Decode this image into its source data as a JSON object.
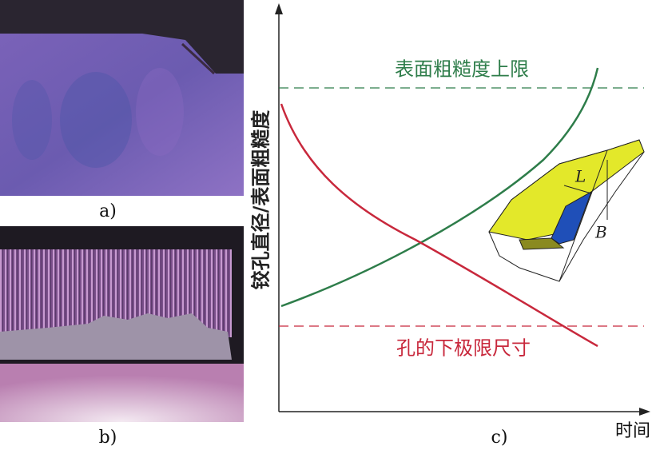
{
  "panels": {
    "a": {
      "label": "a)"
    },
    "b": {
      "label": "b)"
    },
    "c": {
      "label": "c)",
      "y_axis_label": "铰孔直径/表面粗糙度",
      "x_axis_label": "时间",
      "upper_limit_label": "表面粗糙度上限",
      "lower_limit_label": "孔的下极限尺寸",
      "inset_labels": [
        "L",
        "B"
      ]
    }
  }
}
